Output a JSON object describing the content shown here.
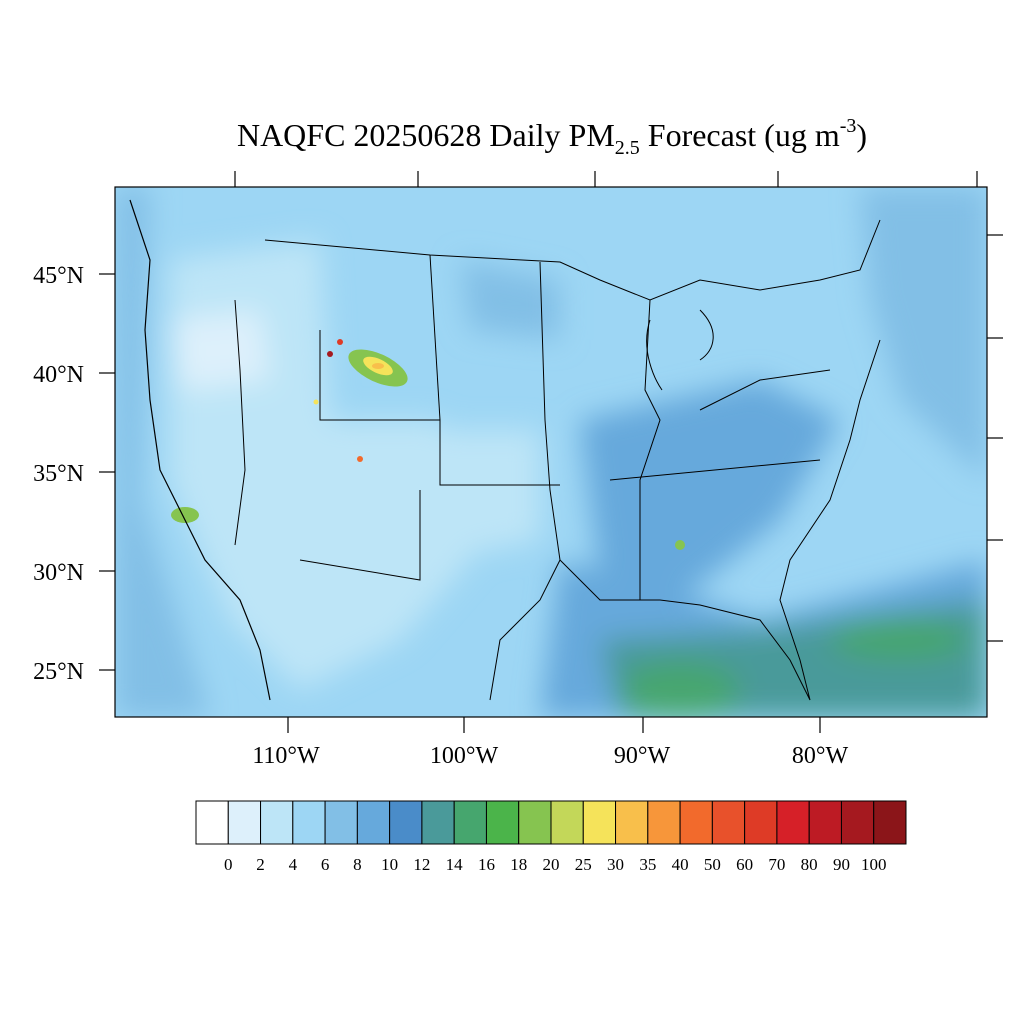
{
  "title": {
    "parts": [
      "NAQFC 20250628 Daily PM",
      "2.5",
      " Forecast (ug m",
      "-3",
      ")"
    ]
  },
  "map": {
    "lat_labels": [
      "45°N",
      "40°N",
      "35°N",
      "30°N",
      "25°N"
    ],
    "lon_labels": [
      "110°W",
      "100°W",
      "90°W",
      "80°W"
    ]
  },
  "colorbar": {
    "labels": [
      0,
      2,
      4,
      6,
      8,
      10,
      12,
      14,
      16,
      18,
      20,
      25,
      30,
      35,
      40,
      50,
      60,
      70,
      80,
      90,
      100
    ],
    "colors": [
      "#ffffff",
      "#ddf0fb",
      "#bde5f7",
      "#9dd6f4",
      "#82bfe6",
      "#66a9dc",
      "#4a8cc9",
      "#4a9a9a",
      "#46a66e",
      "#4bb44a",
      "#86c450",
      "#c3d759",
      "#f5e35a",
      "#f8bf4b",
      "#f7963a",
      "#f26a2c",
      "#e8512b",
      "#de3b26",
      "#d62028",
      "#bd1b24",
      "#a5191f",
      "#8b1519"
    ]
  }
}
